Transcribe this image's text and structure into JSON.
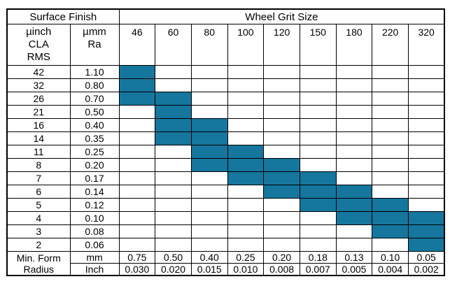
{
  "chart_data": {
    "type": "table",
    "title": "Surface Finish vs Wheel Grit Size selection table",
    "header": {
      "surface_finish": "Surface Finish",
      "wheel_grit_size": "Wheel Grit Size",
      "uinch_unit": "µinch\nCLA\nRMS",
      "umm_unit": "µmm\nRa"
    },
    "grit_sizes": [
      "46",
      "60",
      "80",
      "100",
      "120",
      "150",
      "180",
      "220",
      "320"
    ],
    "rows": [
      {
        "uinch": "42",
        "umm": "1.10",
        "filled": [
          0
        ]
      },
      {
        "uinch": "32",
        "umm": "0.80",
        "filled": [
          0
        ]
      },
      {
        "uinch": "26",
        "umm": "0.70",
        "filled": [
          0,
          1
        ]
      },
      {
        "uinch": "21",
        "umm": "0.50",
        "filled": [
          1
        ]
      },
      {
        "uinch": "16",
        "umm": "0.40",
        "filled": [
          1,
          2
        ]
      },
      {
        "uinch": "14",
        "umm": "0.35",
        "filled": [
          1,
          2
        ]
      },
      {
        "uinch": "11",
        "umm": "0.25",
        "filled": [
          2,
          3
        ]
      },
      {
        "uinch": "8",
        "umm": "0.20",
        "filled": [
          2,
          3,
          4
        ]
      },
      {
        "uinch": "7",
        "umm": "0.17",
        "filled": [
          3,
          4,
          5
        ]
      },
      {
        "uinch": "6",
        "umm": "0.14",
        "filled": [
          4,
          5,
          6
        ]
      },
      {
        "uinch": "5",
        "umm": "0.12",
        "filled": [
          5,
          6,
          7
        ]
      },
      {
        "uinch": "4",
        "umm": "0.10",
        "filled": [
          6,
          7,
          8
        ]
      },
      {
        "uinch": "3",
        "umm": "0.08",
        "filled": [
          7,
          8
        ]
      },
      {
        "uinch": "2",
        "umm": "0.06",
        "filled": [
          8
        ]
      }
    ],
    "footer": {
      "label": "Min. Form\nRadius",
      "mm_label": "mm",
      "inch_label": "Inch",
      "mm_values": [
        "0.75",
        "0.50",
        "0.40",
        "0.25",
        "0.20",
        "0.18",
        "0.13",
        "0.10",
        "0.05"
      ],
      "inch_values": [
        "0.030",
        "0.020",
        "0.015",
        "0.010",
        "0.008",
        "0.007",
        "0.005",
        "0.004",
        "0.002"
      ]
    },
    "colors": {
      "fill": "#15769E",
      "border": "#000000",
      "background": "#FFFFFF"
    }
  }
}
